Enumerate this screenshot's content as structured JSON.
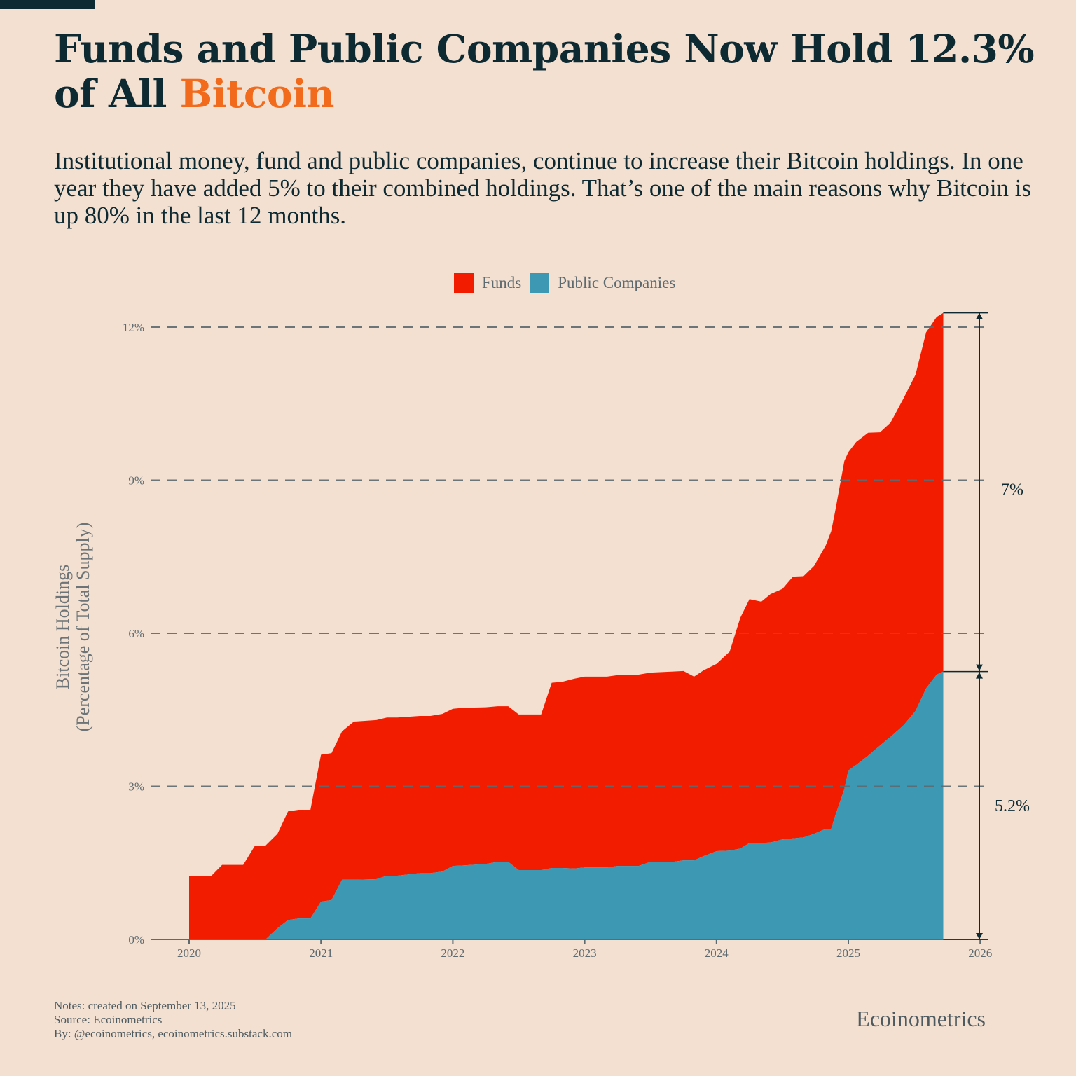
{
  "header": {
    "title_main": "Funds and Public Companies Now Hold 12.3% of All",
    "title_accent": "Bitcoin",
    "subtitle": "Institutional money, fund and public companies, continue to increase their Bitcoin holdings. In one year they have added 5% to their combined holdings. That’s one of the main reasons why Bitcoin is up 80% in the last 12 months."
  },
  "footer": {
    "notes": "Notes: created on September 13, 2025",
    "source": "Source: Ecoinometrics",
    "by": "By: @ecoinometrics, ecoinometrics.substack.com",
    "brand": "Ecoinometrics"
  },
  "colors": {
    "funds": "#f21c00",
    "companies": "#3d98b3",
    "title_accent": "#f26a1b",
    "background": "#f3e0d1"
  },
  "chart_data": {
    "type": "area",
    "stacked": true,
    "ylabel_line1": "Bitcoin Holdings",
    "ylabel_line2": "(Percentage of Total Supply)",
    "ylim": [
      0,
      12.3
    ],
    "xlim": [
      2019.75,
      2026
    ],
    "yticks": [
      0,
      3,
      6,
      9,
      12
    ],
    "ytick_labels": [
      "0%",
      "3%",
      "6%",
      "9%",
      "12%"
    ],
    "xticks": [
      2020,
      2021,
      2022,
      2023,
      2024,
      2025,
      2026
    ],
    "xtick_labels": [
      "2020",
      "2021",
      "2022",
      "2023",
      "2024",
      "2025",
      "2026"
    ],
    "grid": "horizontal dashed",
    "legend_position": "top-center",
    "annotations": {
      "funds_latest": "7%",
      "companies_latest": "5.2%"
    },
    "x": [
      2020.0,
      2020.17,
      2020.25,
      2020.41,
      2020.5,
      2020.58,
      2020.67,
      2020.75,
      2020.83,
      2020.92,
      2021.0,
      2021.08,
      2021.16,
      2021.25,
      2021.42,
      2021.5,
      2021.58,
      2021.75,
      2021.83,
      2021.92,
      2022.0,
      2022.08,
      2022.25,
      2022.34,
      2022.42,
      2022.5,
      2022.67,
      2022.75,
      2022.83,
      2022.92,
      2023.0,
      2023.17,
      2023.25,
      2023.41,
      2023.5,
      2023.67,
      2023.75,
      2023.83,
      2023.9,
      2024.0,
      2024.1,
      2024.18,
      2024.25,
      2024.34,
      2024.41,
      2024.5,
      2024.58,
      2024.66,
      2024.74,
      2024.83,
      2024.87,
      2024.9,
      2024.97,
      2025.0,
      2025.06,
      2025.15,
      2025.24,
      2025.32,
      2025.42,
      2025.51,
      2025.59,
      2025.67,
      2025.72
    ],
    "series": [
      {
        "name": "Public Companies",
        "values": [
          0,
          0,
          0,
          0,
          0,
          0,
          0.22,
          0.38,
          0.41,
          0.41,
          0.74,
          0.77,
          1.17,
          1.17,
          1.18,
          1.25,
          1.25,
          1.3,
          1.3,
          1.33,
          1.44,
          1.45,
          1.48,
          1.52,
          1.52,
          1.36,
          1.36,
          1.4,
          1.4,
          1.39,
          1.41,
          1.41,
          1.44,
          1.44,
          1.52,
          1.52,
          1.55,
          1.55,
          1.63,
          1.73,
          1.74,
          1.78,
          1.89,
          1.89,
          1.9,
          1.96,
          1.98,
          2.0,
          2.07,
          2.17,
          2.17,
          2.42,
          2.95,
          3.31,
          3.42,
          3.6,
          3.8,
          3.97,
          4.2,
          4.48,
          4.92,
          5.19,
          5.25
        ]
      },
      {
        "name": "Funds",
        "values": [
          1.25,
          1.25,
          1.46,
          1.46,
          1.84,
          1.84,
          1.85,
          2.13,
          2.13,
          2.13,
          2.88,
          2.88,
          2.91,
          3.1,
          3.12,
          3.1,
          3.1,
          3.08,
          3.08,
          3.09,
          3.08,
          3.09,
          3.07,
          3.05,
          3.05,
          3.05,
          3.05,
          3.63,
          3.65,
          3.72,
          3.74,
          3.74,
          3.74,
          3.75,
          3.71,
          3.73,
          3.71,
          3.6,
          3.64,
          3.67,
          3.9,
          4.52,
          4.78,
          4.73,
          4.87,
          4.91,
          5.13,
          5.12,
          5.25,
          5.56,
          5.83,
          5.97,
          6.43,
          6.24,
          6.33,
          6.33,
          6.14,
          6.16,
          6.41,
          6.59,
          6.98,
          7.01,
          7.03
        ]
      }
    ]
  }
}
